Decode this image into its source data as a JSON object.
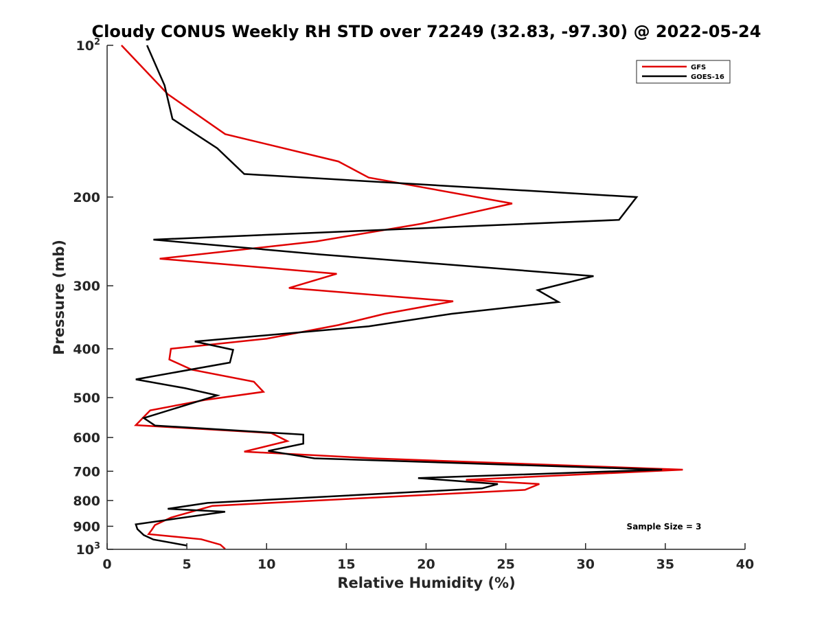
{
  "chart_data": {
    "type": "line",
    "title": "Cloudy CONUS Weekly RH STD over 72249 (32.83, -97.30) @ 2022-05-24",
    "xlabel": "Relative Humidity (%)",
    "ylabel": "Pressure (mb)",
    "xlim": [
      0,
      40
    ],
    "ylim": [
      100,
      1000
    ],
    "yscale": "log",
    "y_reversed": true,
    "grid": false,
    "legend_position": "top-right",
    "x_ticks": [
      0,
      5,
      10,
      15,
      20,
      25,
      30,
      35,
      40
    ],
    "y_ticks": [
      {
        "value": 100,
        "base": "10",
        "exp": "2"
      },
      {
        "value": 200,
        "label": "200"
      },
      {
        "value": 300,
        "label": "300"
      },
      {
        "value": 400,
        "label": "400"
      },
      {
        "value": 500,
        "label": "500"
      },
      {
        "value": 600,
        "label": "600"
      },
      {
        "value": 700,
        "label": "700"
      },
      {
        "value": 800,
        "label": "800"
      },
      {
        "value": 900,
        "label": "900"
      },
      {
        "value": 1000,
        "base": "10",
        "exp": "3"
      }
    ],
    "series": [
      {
        "name": "GFS",
        "color": "#e00000",
        "points": [
          [
            0.9,
            100
          ],
          [
            3.8,
            125
          ],
          [
            7.4,
            150
          ],
          [
            14.5,
            170
          ],
          [
            16.4,
            183
          ],
          [
            25.4,
            206
          ],
          [
            19.7,
            226
          ],
          [
            13.1,
            245
          ],
          [
            3.3,
            265
          ],
          [
            14.4,
            284
          ],
          [
            11.4,
            303
          ],
          [
            21.7,
            322
          ],
          [
            17.4,
            341
          ],
          [
            14.5,
            359
          ],
          [
            10.0,
            382
          ],
          [
            4.0,
            400
          ],
          [
            3.9,
            420
          ],
          [
            5.3,
            440
          ],
          [
            9.2,
            465
          ],
          [
            9.8,
            487
          ],
          [
            6.2,
            505
          ],
          [
            2.7,
            530
          ],
          [
            1.8,
            567
          ],
          [
            10.3,
            588
          ],
          [
            11.3,
            610
          ],
          [
            8.6,
            640
          ],
          [
            16.7,
            660
          ],
          [
            36.1,
            695
          ],
          [
            22.5,
            728
          ],
          [
            27.1,
            742
          ],
          [
            26.2,
            762
          ],
          [
            6.6,
            820
          ],
          [
            4.0,
            865
          ],
          [
            3.0,
            895
          ],
          [
            2.8,
            915
          ],
          [
            2.6,
            933
          ],
          [
            5.9,
            955
          ],
          [
            7.1,
            979
          ],
          [
            7.4,
            998
          ]
        ]
      },
      {
        "name": "GOES-16",
        "color": "#000000",
        "points": [
          [
            2.5,
            100
          ],
          [
            3.6,
            120
          ],
          [
            4.1,
            140
          ],
          [
            6.9,
            160
          ],
          [
            8.6,
            180
          ],
          [
            33.2,
            200
          ],
          [
            32.1,
            222
          ],
          [
            2.9,
            243
          ],
          [
            13.4,
            260
          ],
          [
            30.5,
            287
          ],
          [
            27.0,
            306
          ],
          [
            28.3,
            323
          ],
          [
            21.6,
            341
          ],
          [
            16.4,
            361
          ],
          [
            5.5,
            387
          ],
          [
            7.9,
            402
          ],
          [
            7.7,
            426
          ],
          [
            1.8,
            460
          ],
          [
            4.9,
            479
          ],
          [
            6.9,
            495
          ],
          [
            4.8,
            519
          ],
          [
            2.3,
            549
          ],
          [
            3.0,
            568
          ],
          [
            12.3,
            592
          ],
          [
            12.3,
            617
          ],
          [
            10.1,
            638
          ],
          [
            13.0,
            660
          ],
          [
            34.8,
            695
          ],
          [
            19.5,
            722
          ],
          [
            24.5,
            742
          ],
          [
            23.5,
            757
          ],
          [
            6.3,
            809
          ],
          [
            3.8,
            831
          ],
          [
            7.4,
            842
          ],
          [
            1.8,
            892
          ],
          [
            1.9,
            912
          ],
          [
            2.3,
            937
          ],
          [
            2.9,
            956
          ],
          [
            5.0,
            983
          ]
        ]
      }
    ],
    "legend": [
      {
        "label": "GFS",
        "color": "#e00000"
      },
      {
        "label": "GOES-16",
        "color": "#000000"
      }
    ],
    "annotations": [
      {
        "text": "Sample Size = 3"
      }
    ]
  }
}
